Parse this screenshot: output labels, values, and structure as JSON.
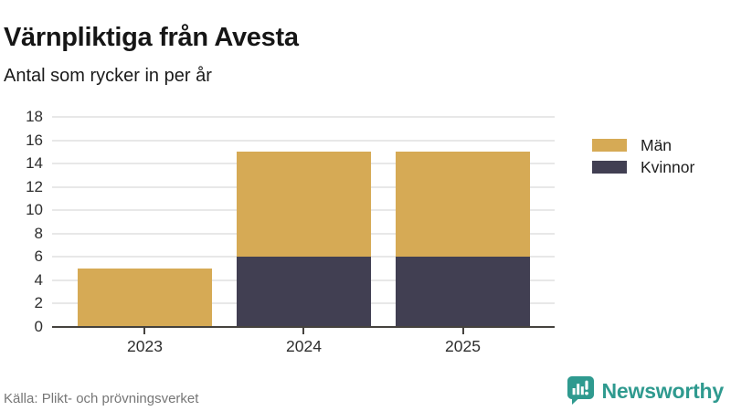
{
  "header": {
    "title": "Värnpliktiga från Avesta",
    "subtitle": "Antal som rycker in per år"
  },
  "chart_data": {
    "type": "bar",
    "stacked": true,
    "title": "Värnpliktiga från Avesta",
    "subtitle": "Antal som rycker in per år",
    "categories": [
      "2023",
      "2024",
      "2025"
    ],
    "series": [
      {
        "name": "Män",
        "color": "#d6aa55",
        "values": [
          5,
          9,
          9
        ]
      },
      {
        "name": "Kvinnor",
        "color": "#413f52",
        "values": [
          0,
          6,
          6
        ]
      }
    ],
    "stack_bottom_to_top": [
      "Kvinnor",
      "Män"
    ],
    "totals": [
      5,
      15,
      15
    ],
    "xlabel": "",
    "ylabel": "",
    "ylim": [
      0,
      18
    ],
    "yticks": [
      0,
      2,
      4,
      6,
      8,
      10,
      12,
      14,
      16,
      18
    ],
    "grid": true,
    "legend_position": "right"
  },
  "footer": {
    "source": "Källa: Plikt- och prövningsverket",
    "brand": "Newsworthy"
  },
  "colors": {
    "men": "#d6aa55",
    "women": "#413f52",
    "brand_teal": "#2f9a8f",
    "grid": "#e8e8e8",
    "axis": "#45423e",
    "text_muted": "#767676"
  }
}
